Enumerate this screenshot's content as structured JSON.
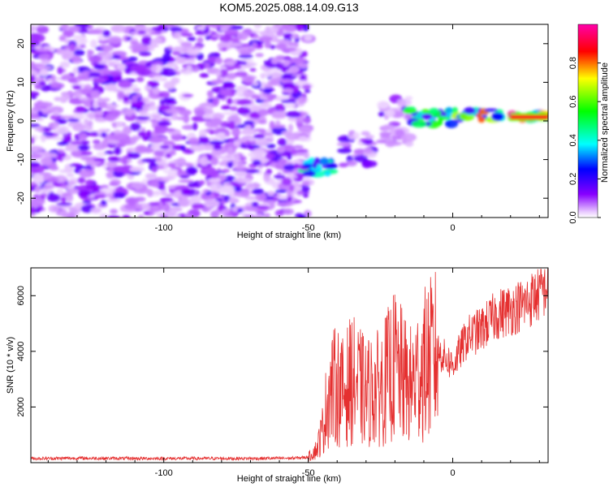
{
  "figure": {
    "title": "KOM5.2025.088.14.09.G13"
  },
  "chart_data": [
    {
      "type": "heatmap",
      "xlabel": "Height of straight line (km)",
      "ylabel": "Frequency (Hz)",
      "xlim": [
        -146,
        33
      ],
      "ylim": [
        -25,
        25
      ],
      "xticks": [
        -100,
        -50,
        0
      ],
      "yticks": [
        -20,
        -10,
        0,
        10,
        20
      ],
      "colorbar": {
        "label": "Normalized spectral amplitude",
        "range": [
          0,
          1
        ],
        "ticks": [
          0.0,
          0.2,
          0.4,
          0.6,
          0.8
        ]
      },
      "regions": [
        {
          "x_from": -146,
          "x_to": -50,
          "freq_from": -25,
          "freq_to": 25,
          "amplitude": 0.1,
          "description": "diffuse noise"
        },
        {
          "x_from": -52,
          "x_to": -42,
          "freq_from": -14,
          "freq_to": -10,
          "amplitude": 0.35
        },
        {
          "x_from": -38,
          "x_to": -28,
          "freq_from": -12,
          "freq_to": -3,
          "amplitude": 0.15
        },
        {
          "x_from": -25,
          "x_to": -15,
          "freq_from": -6,
          "freq_to": 6,
          "amplitude": 0.15
        },
        {
          "x_from": -15,
          "x_to": 0,
          "freq_from": -1,
          "freq_to": 3,
          "amplitude": 0.45
        },
        {
          "x_from": 0,
          "x_to": 18,
          "freq_from": 0,
          "freq_to": 3,
          "amplitude": 0.6
        },
        {
          "x_from": 20,
          "x_to": 33,
          "freq_from": 0,
          "freq_to": 2,
          "amplitude": 0.95
        }
      ]
    },
    {
      "type": "line",
      "xlabel": "Height of straight line (km)",
      "ylabel": "SNR (10 * v/v)",
      "xlim": [
        -146,
        33
      ],
      "ylim": [
        0,
        7000
      ],
      "xticks": [
        -100,
        -50,
        0
      ],
      "yticks": [
        2000,
        4000,
        6000
      ],
      "color": "#e53030",
      "series": [
        {
          "x": [
            -146,
            -130,
            -110,
            -90,
            -70,
            -55,
            -50,
            -47,
            -45,
            -43,
            -40,
            -38,
            -35,
            -30,
            -25,
            -20,
            -15,
            -10,
            -5,
            0,
            5,
            10,
            15,
            20,
            25,
            30,
            33
          ],
          "y": [
            150,
            160,
            150,
            150,
            150,
            160,
            200,
            500,
            1200,
            2500,
            2800,
            2500,
            3000,
            2500,
            2700,
            3500,
            2700,
            3500,
            4000,
            3500,
            4500,
            4800,
            5300,
            5500,
            5700,
            6100,
            6400
          ]
        }
      ]
    }
  ]
}
